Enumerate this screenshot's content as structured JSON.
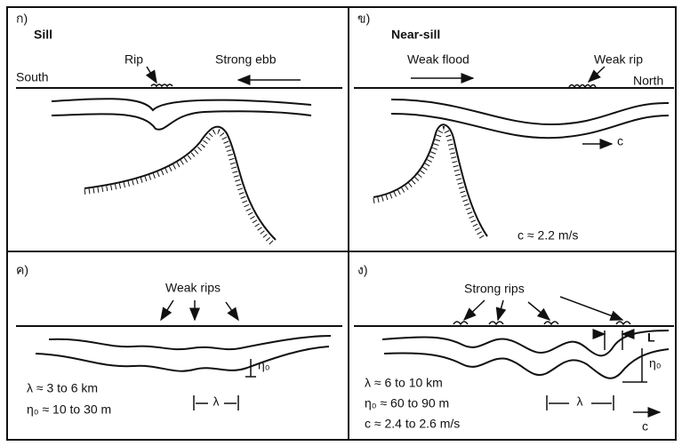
{
  "panels": [
    {
      "label": "ก)",
      "title": "Sill",
      "texts": [
        "Rip",
        "Strong ebb",
        "South"
      ]
    },
    {
      "label": "ข)",
      "title": "Near-sill",
      "texts": [
        "Weak flood",
        "Weak rip",
        "North",
        "c",
        "c ≈ 2.2 m/s"
      ]
    },
    {
      "label": "ค)",
      "title": "Weak rips",
      "texts": [
        "λ ≈ 3 to 6 km",
        "η₀ ≈ 10 to 30 m",
        "η₀",
        "λ"
      ]
    },
    {
      "label": "ง)",
      "title": "Strong rips",
      "texts": [
        "L",
        "η₀",
        "λ ≈ 6 to 10 km",
        "η₀ ≈ 60 to 90 m",
        "c ≈ 2.4 to 2.6 m/s",
        "λ",
        "c"
      ]
    }
  ]
}
